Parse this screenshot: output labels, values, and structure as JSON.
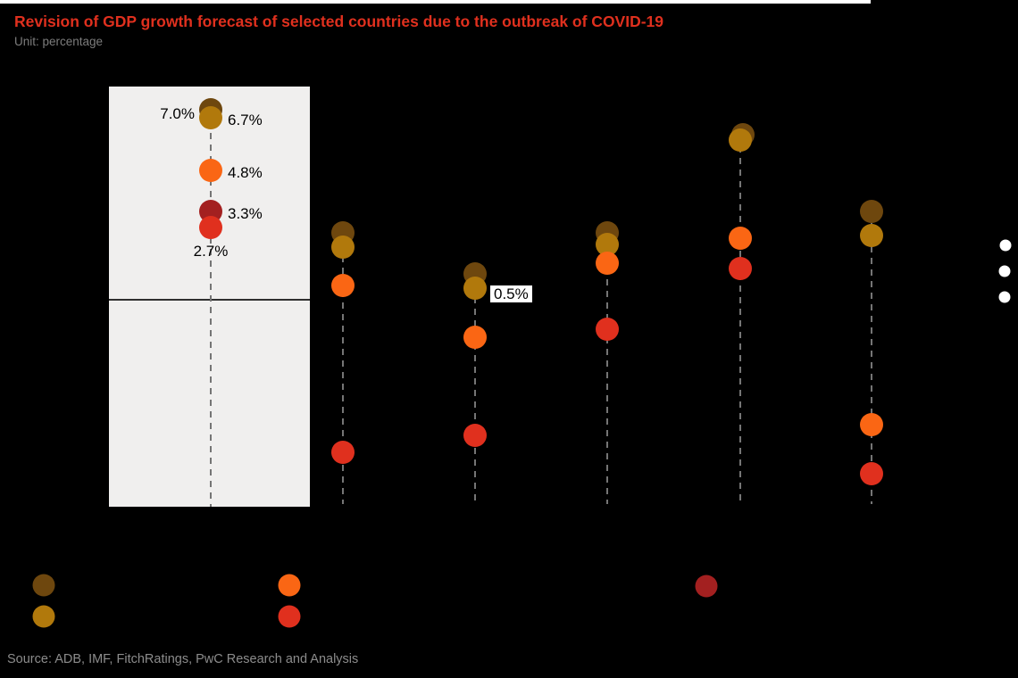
{
  "page": {
    "background_color": "#000000",
    "top_strip_color": "#FFFFFF"
  },
  "header": {
    "title": "Revision of GDP growth forecast of selected countries due to the outbreak of COVID-19",
    "title_color": "#E0301E",
    "subtitle": "Unit: percentage"
  },
  "footer": {
    "source": "Source: ADB, IMF, FitchRatings, PwC Research and Analysis"
  },
  "chart_data": {
    "type": "scatter",
    "title": "Revision of GDP growth forecast of selected countries due to the outbreak of COVID-19",
    "unit": "percentage",
    "ylabel": "",
    "xlabel": "",
    "ylim": [
      -7.8,
      7.8
    ],
    "zero_line": 0,
    "axis_tick_labels_visible": false,
    "category_labels_visible": false,
    "series": [
      {
        "key": "dark-brown",
        "color": "#6E470E"
      },
      {
        "key": "golden",
        "color": "#B1790C"
      },
      {
        "key": "orange",
        "color": "#FA6614"
      },
      {
        "key": "dark-red",
        "color": "#A32020"
      },
      {
        "key": "red",
        "color": "#E0301E"
      }
    ],
    "columns": [
      {
        "id": "col-1",
        "highlighted": true,
        "points": [
          {
            "series": "dark-brown",
            "value": 7.0,
            "label": "7.0%",
            "label_side": "left"
          },
          {
            "series": "golden",
            "value": 6.7,
            "label": "6.7%",
            "label_side": "right"
          },
          {
            "series": "orange",
            "value": 4.8,
            "label": "4.8%",
            "label_side": "right"
          },
          {
            "series": "dark-red",
            "value": 3.3,
            "label": "3.3%",
            "label_side": "right"
          },
          {
            "series": "red",
            "value": 2.7,
            "label": "2.7%",
            "label_side": "below"
          }
        ]
      },
      {
        "id": "col-2",
        "highlighted": false,
        "points": [
          {
            "series": "dark-brown",
            "value": 2.5
          },
          {
            "series": "golden",
            "value": 2.0
          },
          {
            "series": "orange",
            "value": 0.6
          },
          {
            "series": "red",
            "value": -5.5
          }
        ]
      },
      {
        "id": "col-3",
        "highlighted": false,
        "points": [
          {
            "series": "dark-brown",
            "value": 1.0
          },
          {
            "series": "golden",
            "value": 0.5,
            "label": "0.5%",
            "label_side": "boxed-right"
          },
          {
            "series": "orange",
            "value": -1.3
          },
          {
            "series": "red",
            "value": -4.9
          }
        ]
      },
      {
        "id": "col-4",
        "highlighted": false,
        "points": [
          {
            "series": "dark-brown",
            "value": 2.5
          },
          {
            "series": "golden",
            "value": 2.1
          },
          {
            "series": "orange",
            "value": 1.4
          },
          {
            "series": "red",
            "value": -1.0
          }
        ]
      },
      {
        "id": "col-5",
        "highlighted": false,
        "points": [
          {
            "series": "dark-brown",
            "value": 6.1,
            "dx": 3
          },
          {
            "series": "golden",
            "value": 5.9
          },
          {
            "series": "orange",
            "value": 2.3
          },
          {
            "series": "red",
            "value": 1.2
          }
        ]
      },
      {
        "id": "col-6",
        "highlighted": false,
        "points": [
          {
            "series": "dark-brown",
            "value": 3.3
          },
          {
            "series": "golden",
            "value": 2.4
          },
          {
            "series": "orange",
            "value": -4.5
          },
          {
            "series": "red",
            "value": -6.3
          }
        ]
      }
    ],
    "legend": {
      "labels_visible": false,
      "items": [
        {
          "series": "dark-brown",
          "color": "#6E470E"
        },
        {
          "series": "golden",
          "color": "#B1790C"
        },
        {
          "series": "orange",
          "color": "#FA6614"
        },
        {
          "series": "red",
          "color": "#E0301E"
        },
        {
          "series": "dark-red",
          "color": "#A32020"
        }
      ]
    },
    "right_markers": {
      "count": 3,
      "color": "#FFFFFF"
    }
  }
}
